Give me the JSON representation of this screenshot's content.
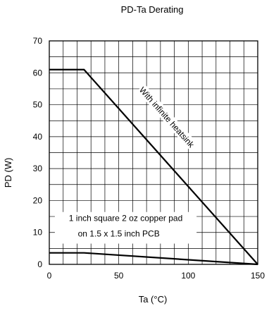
{
  "chart_data": {
    "type": "line",
    "title": "PD-Ta  Derating",
    "xlabel": "Ta  (°C)",
    "ylabel": "PD  (W)",
    "xlim": [
      0,
      150
    ],
    "ylim": [
      0,
      70
    ],
    "xticks": [
      0,
      50,
      100,
      150
    ],
    "yticks": [
      0,
      10,
      20,
      30,
      40,
      50,
      60,
      70
    ],
    "grid": true,
    "series": [
      {
        "name": "With infinite heatsink",
        "x": [
          0,
          25,
          150
        ],
        "y": [
          61,
          61,
          0
        ]
      },
      {
        "name": "1 inch square 2 oz copper pad on 1.5 x 1.5 inch PCB",
        "x": [
          0,
          25,
          150
        ],
        "y": [
          3.6,
          3.6,
          0
        ]
      }
    ],
    "annotations": {
      "heatsink": "With infinite heatsink",
      "pad_line1": "1 inch square 2 oz copper pad",
      "pad_line2": "on  1.5 x 1.5 inch PCB"
    }
  }
}
